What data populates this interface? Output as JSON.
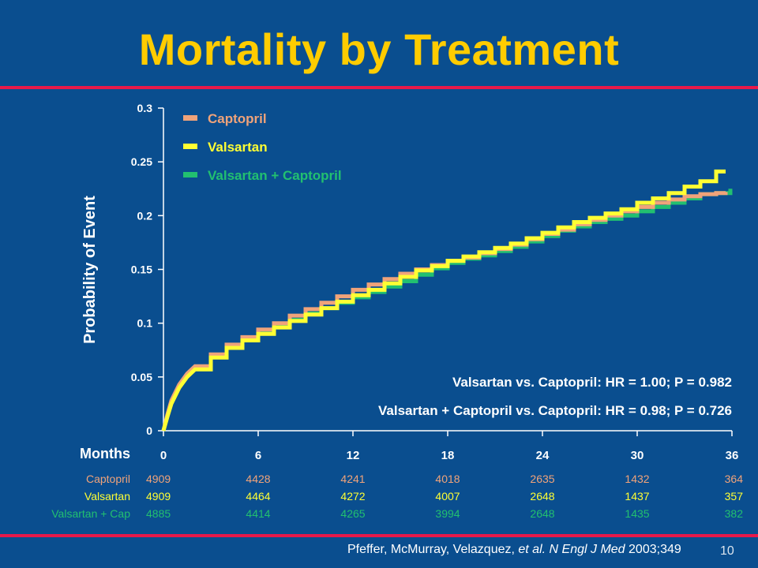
{
  "title": "Mortality by Treatment",
  "citation": {
    "authors": "Pfeffer, McMurray, Velazquez, ",
    "etal": "et al.",
    "journal": "N Engl J Med",
    "year_vol": "2003;349",
    "page_number": "10"
  },
  "colors": {
    "background": "#0a4e8f",
    "title": "#ffcc00",
    "rule": "#e8194a",
    "captopril": "#f0a37a",
    "valsartan": "#ffff33",
    "combo": "#22c070",
    "text": "#ffffff"
  },
  "chart_data": {
    "type": "line",
    "xlabel": "Months",
    "ylabel": "Probability of Event",
    "xlim": [
      0,
      36
    ],
    "ylim": [
      0,
      0.3
    ],
    "xticks": [
      0,
      6,
      12,
      18,
      24,
      30,
      36
    ],
    "yticks": [
      0,
      0.05,
      0.1,
      0.15,
      0.2,
      0.25,
      0.3
    ],
    "ytick_labels": [
      "0",
      "0.05",
      "0.1",
      "0.15",
      "0.2",
      "0.25",
      "0.3"
    ],
    "legend_position": "top-left",
    "series": [
      {
        "name": "Captopril",
        "color": "#f0a37a",
        "x": [
          0,
          0.25,
          0.5,
          1,
          1.5,
          2,
          3,
          4,
          5,
          6,
          7,
          8,
          9,
          10,
          11,
          12,
          13,
          14,
          15,
          16,
          17,
          18,
          19,
          20,
          21,
          22,
          23,
          24,
          25,
          26,
          27,
          28,
          29,
          30,
          31,
          32,
          33,
          34,
          35,
          35.6
        ],
        "y": [
          0,
          0.015,
          0.028,
          0.043,
          0.053,
          0.06,
          0.071,
          0.08,
          0.087,
          0.094,
          0.1,
          0.107,
          0.113,
          0.119,
          0.125,
          0.131,
          0.136,
          0.141,
          0.146,
          0.15,
          0.154,
          0.158,
          0.161,
          0.165,
          0.169,
          0.173,
          0.178,
          0.183,
          0.187,
          0.192,
          0.196,
          0.2,
          0.204,
          0.208,
          0.212,
          0.215,
          0.218,
          0.22,
          0.221,
          0.222
        ]
      },
      {
        "name": "Valsartan",
        "color": "#ffff33",
        "x": [
          0,
          0.25,
          0.5,
          1,
          1.5,
          2,
          3,
          4,
          5,
          6,
          7,
          8,
          9,
          10,
          11,
          12,
          13,
          14,
          15,
          16,
          17,
          18,
          19,
          20,
          21,
          22,
          23,
          24,
          25,
          26,
          27,
          28,
          29,
          30,
          31,
          32,
          33,
          34,
          35,
          35.6
        ],
        "y": [
          0,
          0.013,
          0.025,
          0.04,
          0.05,
          0.057,
          0.068,
          0.077,
          0.084,
          0.09,
          0.096,
          0.102,
          0.108,
          0.114,
          0.12,
          0.126,
          0.131,
          0.137,
          0.143,
          0.149,
          0.153,
          0.158,
          0.162,
          0.166,
          0.17,
          0.174,
          0.179,
          0.184,
          0.189,
          0.194,
          0.198,
          0.202,
          0.206,
          0.212,
          0.216,
          0.221,
          0.227,
          0.232,
          0.241,
          0.241
        ]
      },
      {
        "name": "Valsartan + Captopril",
        "color": "#22c070",
        "x": [
          0,
          0.25,
          0.5,
          1,
          1.5,
          2,
          3,
          4,
          5,
          6,
          7,
          8,
          9,
          10,
          11,
          12,
          13,
          14,
          15,
          16,
          17,
          18,
          19,
          20,
          21,
          22,
          23,
          24,
          25,
          26,
          27,
          28,
          29,
          30,
          31,
          32,
          33,
          34,
          35,
          35.9
        ],
        "y": [
          0,
          0.014,
          0.027,
          0.042,
          0.052,
          0.059,
          0.07,
          0.079,
          0.086,
          0.092,
          0.098,
          0.103,
          0.109,
          0.114,
          0.119,
          0.124,
          0.129,
          0.134,
          0.139,
          0.145,
          0.151,
          0.156,
          0.16,
          0.163,
          0.167,
          0.171,
          0.176,
          0.181,
          0.186,
          0.19,
          0.194,
          0.197,
          0.2,
          0.204,
          0.208,
          0.212,
          0.216,
          0.22,
          0.221,
          0.225
        ]
      }
    ],
    "annotations": [
      "Valsartan vs. Captopril: HR = 1.00; P = 0.982",
      "Valsartan + Captopril vs. Captopril: HR = 0.98; P = 0.726"
    ],
    "at_risk": {
      "months": [
        0,
        6,
        12,
        18,
        24,
        30,
        36
      ],
      "rows": [
        {
          "label": "Captopril",
          "color": "#f0a37a",
          "values": [
            "4909",
            "4428",
            "4241",
            "4018",
            "2635",
            "1432",
            "364"
          ]
        },
        {
          "label": "Valsartan",
          "color": "#ffff33",
          "values": [
            "4909",
            "4464",
            "4272",
            "4007",
            "2648",
            "1437",
            "357"
          ]
        },
        {
          "label": "Valsartan + Cap",
          "color": "#22c070",
          "values": [
            "4885",
            "4414",
            "4265",
            "3994",
            "2648",
            "1435",
            "382"
          ]
        }
      ]
    }
  }
}
